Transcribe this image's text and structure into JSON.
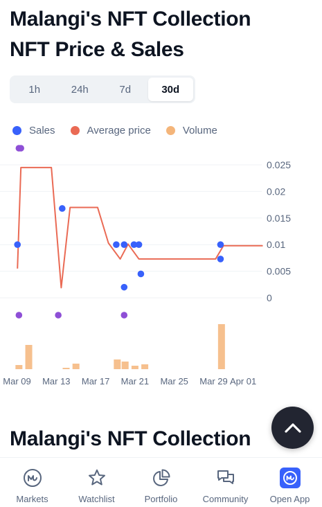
{
  "header": {
    "title_line1": "Malangi's NFT Collection",
    "title_line2": "NFT Price & Sales"
  },
  "time_tabs": [
    {
      "label": "1h",
      "active": false
    },
    {
      "label": "24h",
      "active": false
    },
    {
      "label": "7d",
      "active": false
    },
    {
      "label": "30d",
      "active": true
    }
  ],
  "legend": [
    {
      "label": "Sales",
      "color": "#3861fb"
    },
    {
      "label": "Average price",
      "color": "#ea6a54"
    },
    {
      "label": "Volume",
      "color": "#f4b57a"
    }
  ],
  "chart_data": {
    "type": "line",
    "x_tick_labels": [
      "Mar 09",
      "Mar 13",
      "Mar 17",
      "Mar 21",
      "Mar 25",
      "Mar 29",
      "Apr 01"
    ],
    "x_tick_days": [
      9,
      13,
      17,
      21,
      25,
      29,
      32
    ],
    "x_range_days": [
      8.8,
      34
    ],
    "y_ticks": [
      "0.025",
      "0.02",
      "0.015",
      "0.01",
      "0.005",
      "0"
    ],
    "y_tick_values": [
      0.025,
      0.02,
      0.015,
      0.01,
      0.005,
      0
    ],
    "ylim": [
      0,
      0.025
    ],
    "average_price": {
      "color": "#ea6a54",
      "x_days": [
        9.05,
        9.4,
        12.5,
        13.5,
        14.4,
        16.5,
        17.2,
        18.3,
        19.5,
        20.3,
        21.4,
        22.5,
        29.2,
        30.0,
        34.0
      ],
      "y": [
        0.0055,
        0.0245,
        0.0245,
        0.0019,
        0.017,
        0.017,
        0.017,
        0.0103,
        0.0073,
        0.0101,
        0.0073,
        0.0073,
        0.0073,
        0.0098,
        0.0098
      ]
    },
    "sales": {
      "color": "#3861fb",
      "x_days": [
        9.05,
        13.6,
        19.1,
        19.9,
        19.9,
        20.9,
        21.4,
        21.6,
        29.7,
        29.7
      ],
      "y": [
        0.01,
        0.0168,
        0.01,
        0.01,
        0.002,
        0.01,
        0.01,
        0.0045,
        0.01,
        0.0073
      ]
    },
    "sales_outliers": {
      "color": "#8e4fd6",
      "x_days": [
        9.2,
        9.4,
        9.2,
        13.2,
        19.9
      ],
      "position": [
        "top",
        "top",
        "bottom",
        "bottom",
        "bottom"
      ]
    },
    "volume": {
      "color": "#f4b57a",
      "x_days": [
        9.2,
        10.2,
        14.0,
        15.0,
        19.2,
        20.0,
        21.0,
        22.0,
        29.8
      ],
      "values": [
        6,
        35,
        2,
        8,
        14,
        11,
        5,
        7,
        65
      ],
      "max": 70
    },
    "grid": true
  },
  "section": {
    "title": "Malangi's NFT Collection"
  },
  "fab": {
    "icon": "chevron-up-icon"
  },
  "bottom_nav": [
    {
      "label": "Markets",
      "icon": "markets-icon"
    },
    {
      "label": "Watchlist",
      "icon": "star-icon"
    },
    {
      "label": "Portfolio",
      "icon": "pie-chart-icon"
    },
    {
      "label": "Community",
      "icon": "chat-icon"
    },
    {
      "label": "Open App",
      "icon": "app-logo-icon"
    }
  ]
}
